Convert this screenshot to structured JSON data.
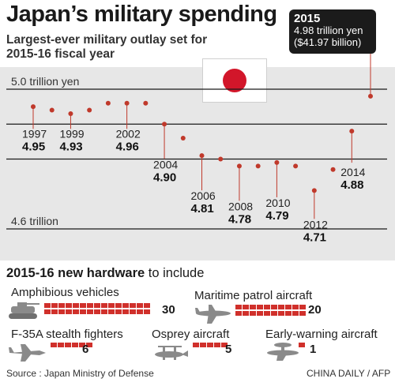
{
  "title": "Japan’s military spending",
  "subtitle": "Largest-ever military outlay set for 2015-16 fiscal year",
  "callout": {
    "year": "2015",
    "line1": "4.98 trillion yen",
    "line2": "($41.97 billion)"
  },
  "chart_data": {
    "type": "scatter",
    "title": "Japan’s military spending",
    "subtitle": "Largest-ever military outlay set for 2015-16 fiscal year",
    "unit": "trillion yen",
    "reference_lines": [
      {
        "value": 5.0,
        "label": "5.0 trillion yen"
      },
      {
        "value": 4.6,
        "label": "4.6 trillion"
      }
    ],
    "x": [
      1997,
      1998,
      1999,
      2000,
      2001,
      2002,
      2003,
      2004,
      2005,
      2006,
      2007,
      2008,
      2009,
      2010,
      2011,
      2012,
      2013,
      2014,
      2015
    ],
    "values": [
      4.95,
      4.94,
      4.93,
      4.94,
      4.96,
      4.96,
      4.96,
      4.9,
      4.86,
      4.81,
      4.8,
      4.78,
      4.78,
      4.79,
      4.78,
      4.71,
      4.77,
      4.88,
      4.98
    ],
    "labeled_points": [
      {
        "year": "1997",
        "value": "4.95"
      },
      {
        "year": "1999",
        "value": "4.93"
      },
      {
        "year": "2002",
        "value": "4.96"
      },
      {
        "year": "2004",
        "value": "4.90"
      },
      {
        "year": "2006",
        "value": "4.81"
      },
      {
        "year": "2008",
        "value": "4.78"
      },
      {
        "year": "2010",
        "value": "4.79"
      },
      {
        "year": "2012",
        "value": "4.71"
      },
      {
        "year": "2014",
        "value": "4.88"
      }
    ],
    "colors": {
      "dot": "#c0392b",
      "panel": "#e7e7e7",
      "grid": "#1a1a1a"
    }
  },
  "hardware": {
    "title": "2015-16 new hardware",
    "title_suffix": "to include",
    "items": [
      {
        "name": "Amphibious vehicles",
        "count": "30",
        "units": 30
      },
      {
        "name": "Maritime patrol aircraft",
        "count": "20",
        "units": 20
      },
      {
        "name": "F-35A stealth fighters",
        "count": "6",
        "units": 6
      },
      {
        "name": "Osprey aircraft",
        "count": "5",
        "units": 5
      },
      {
        "name": "Early-warning aircraft",
        "count": "1",
        "units": 1
      }
    ],
    "icons": [
      "tank-icon",
      "patrol-aircraft-icon",
      "fighter-jet-icon",
      "osprey-icon",
      "awacs-icon"
    ]
  },
  "footer": {
    "source": "Source : Japan Ministry of Defense",
    "credit": "CHINA DAILY / AFP"
  }
}
